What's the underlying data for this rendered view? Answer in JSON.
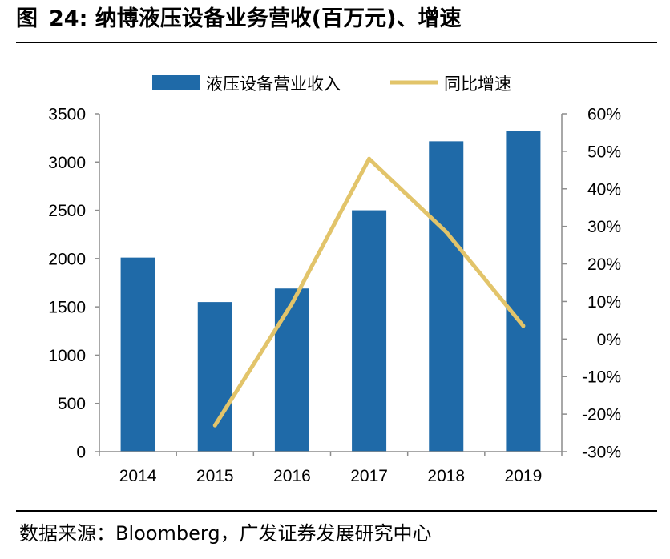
{
  "title": {
    "label": "图",
    "number": "24:",
    "text": "纳博液压设备业务营收(百万元)、增速"
  },
  "source": "数据来源：Bloomberg，广发证券发展研究中心",
  "colors": {
    "bar": "#1f6aa8",
    "line": "#e2c46a",
    "axis": "#8c8c8c",
    "text": "#000000"
  },
  "chart_data": {
    "type": "bar+line",
    "title": "纳博液压设备业务营收(百万元)、增速",
    "categories": [
      "2014",
      "2015",
      "2016",
      "2017",
      "2018",
      "2019"
    ],
    "series": [
      {
        "name": "液压设备营业收入",
        "type": "bar",
        "axis": "left",
        "values": [
          2010,
          1550,
          1690,
          2500,
          3215,
          3325
        ]
      },
      {
        "name": "同比增速",
        "type": "line",
        "axis": "right",
        "values": [
          null,
          -23,
          9.5,
          48,
          28.5,
          3.5
        ]
      }
    ],
    "y_left": {
      "min": 0,
      "max": 3500,
      "ticks": [
        0,
        500,
        1000,
        1500,
        2000,
        2500,
        3000,
        3500
      ]
    },
    "y_right": {
      "min": -30,
      "max": 60,
      "ticks": [
        -30,
        -20,
        -10,
        0,
        10,
        20,
        30,
        40,
        50,
        60
      ],
      "format": "percent"
    },
    "legend": {
      "position": "top",
      "entries": [
        "液压设备营业收入",
        "同比增速"
      ]
    },
    "grid": false
  }
}
